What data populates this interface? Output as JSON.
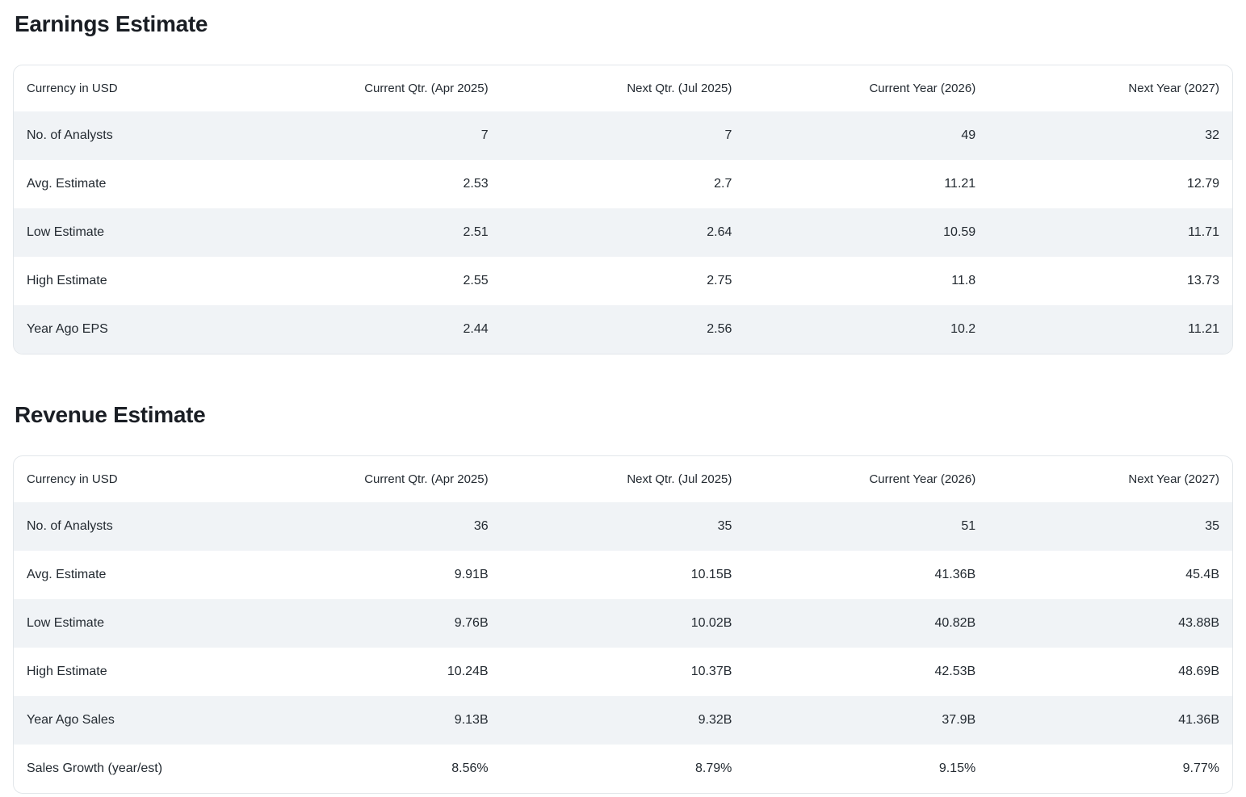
{
  "theme": {
    "text_color": "#232a31",
    "title_color": "#1a1e24",
    "stripe_color": "#f0f3f6",
    "border_color": "#e2e6ea",
    "bg_color": "#ffffff"
  },
  "earnings": {
    "title": "Earnings Estimate",
    "columns": [
      "Currency in USD",
      "Current Qtr. (Apr 2025)",
      "Next Qtr. (Jul 2025)",
      "Current Year (2026)",
      "Next Year (2027)"
    ],
    "rows": [
      {
        "label": "No. of Analysts",
        "values": [
          "7",
          "7",
          "49",
          "32"
        ]
      },
      {
        "label": "Avg. Estimate",
        "values": [
          "2.53",
          "2.7",
          "11.21",
          "12.79"
        ]
      },
      {
        "label": "Low Estimate",
        "values": [
          "2.51",
          "2.64",
          "10.59",
          "11.71"
        ]
      },
      {
        "label": "High Estimate",
        "values": [
          "2.55",
          "2.75",
          "11.8",
          "13.73"
        ]
      },
      {
        "label": "Year Ago EPS",
        "values": [
          "2.44",
          "2.56",
          "10.2",
          "11.21"
        ]
      }
    ]
  },
  "revenue": {
    "title": "Revenue Estimate",
    "columns": [
      "Currency in USD",
      "Current Qtr. (Apr 2025)",
      "Next Qtr. (Jul 2025)",
      "Current Year (2026)",
      "Next Year (2027)"
    ],
    "rows": [
      {
        "label": "No. of Analysts",
        "values": [
          "36",
          "35",
          "51",
          "35"
        ]
      },
      {
        "label": "Avg. Estimate",
        "values": [
          "9.91B",
          "10.15B",
          "41.36B",
          "45.4B"
        ]
      },
      {
        "label": "Low Estimate",
        "values": [
          "9.76B",
          "10.02B",
          "40.82B",
          "43.88B"
        ]
      },
      {
        "label": "High Estimate",
        "values": [
          "10.24B",
          "10.37B",
          "42.53B",
          "48.69B"
        ]
      },
      {
        "label": "Year Ago Sales",
        "values": [
          "9.13B",
          "9.32B",
          "37.9B",
          "41.36B"
        ]
      },
      {
        "label": "Sales Growth (year/est)",
        "values": [
          "8.56%",
          "8.79%",
          "9.15%",
          "9.77%"
        ]
      }
    ]
  }
}
